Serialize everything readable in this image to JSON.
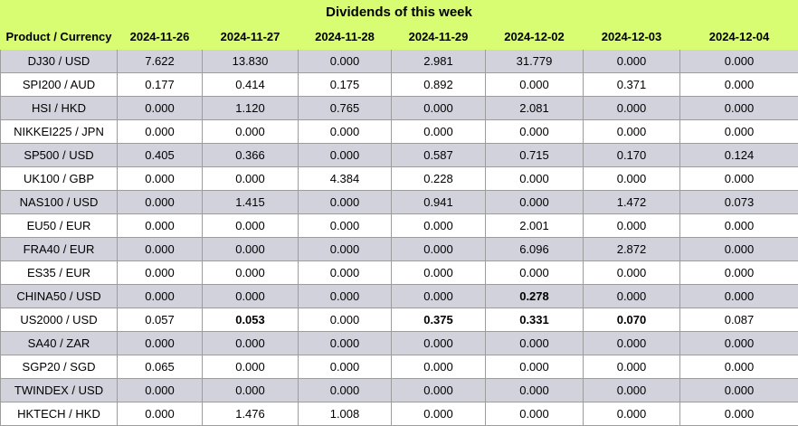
{
  "title": "Dividends of this week",
  "header": [
    "Product / Currency",
    "2024-11-26",
    "2024-11-27",
    "2024-11-28",
    "2024-11-29",
    "2024-12-02",
    "2024-12-03",
    "2024-12-04"
  ],
  "rows": [
    {
      "product": "DJ30 / USD",
      "values": [
        "7.622",
        "13.830",
        "0.000",
        "2.981",
        "31.779",
        "0.000",
        "0.000"
      ],
      "bold": []
    },
    {
      "product": "SPI200 / AUD",
      "values": [
        "0.177",
        "0.414",
        "0.175",
        "0.892",
        "0.000",
        "0.371",
        "0.000"
      ],
      "bold": []
    },
    {
      "product": "HSI / HKD",
      "values": [
        "0.000",
        "1.120",
        "0.765",
        "0.000",
        "2.081",
        "0.000",
        "0.000"
      ],
      "bold": []
    },
    {
      "product": "NIKKEI225 / JPN",
      "values": [
        "0.000",
        "0.000",
        "0.000",
        "0.000",
        "0.000",
        "0.000",
        "0.000"
      ],
      "bold": []
    },
    {
      "product": "SP500 / USD",
      "values": [
        "0.405",
        "0.366",
        "0.000",
        "0.587",
        "0.715",
        "0.170",
        "0.124"
      ],
      "bold": []
    },
    {
      "product": "UK100 / GBP",
      "values": [
        "0.000",
        "0.000",
        "4.384",
        "0.228",
        "0.000",
        "0.000",
        "0.000"
      ],
      "bold": []
    },
    {
      "product": "NAS100 / USD",
      "values": [
        "0.000",
        "1.415",
        "0.000",
        "0.941",
        "0.000",
        "1.472",
        "0.073"
      ],
      "bold": []
    },
    {
      "product": "EU50 / EUR",
      "values": [
        "0.000",
        "0.000",
        "0.000",
        "0.000",
        "2.001",
        "0.000",
        "0.000"
      ],
      "bold": []
    },
    {
      "product": "FRA40 / EUR",
      "values": [
        "0.000",
        "0.000",
        "0.000",
        "0.000",
        "6.096",
        "2.872",
        "0.000"
      ],
      "bold": []
    },
    {
      "product": "ES35 / EUR",
      "values": [
        "0.000",
        "0.000",
        "0.000",
        "0.000",
        "0.000",
        "0.000",
        "0.000"
      ],
      "bold": []
    },
    {
      "product": "CHINA50 / USD",
      "values": [
        "0.000",
        "0.000",
        "0.000",
        "0.000",
        "0.278",
        "0.000",
        "0.000"
      ],
      "bold": [
        4
      ]
    },
    {
      "product": "US2000 / USD",
      "values": [
        "0.057",
        "0.053",
        "0.000",
        "0.375",
        "0.331",
        "0.070",
        "0.087"
      ],
      "bold": [
        1,
        3,
        4,
        5
      ]
    },
    {
      "product": "SA40 / ZAR",
      "values": [
        "0.000",
        "0.000",
        "0.000",
        "0.000",
        "0.000",
        "0.000",
        "0.000"
      ],
      "bold": []
    },
    {
      "product": "SGP20 / SGD",
      "values": [
        "0.065",
        "0.000",
        "0.000",
        "0.000",
        "0.000",
        "0.000",
        "0.000"
      ],
      "bold": []
    },
    {
      "product": "TWINDEX / USD",
      "values": [
        "0.000",
        "0.000",
        "0.000",
        "0.000",
        "0.000",
        "0.000",
        "0.000"
      ],
      "bold": []
    },
    {
      "product": "HKTECH / HKD",
      "values": [
        "0.000",
        "1.476",
        "1.008",
        "0.000",
        "0.000",
        "0.000",
        "0.000"
      ],
      "bold": []
    }
  ]
}
